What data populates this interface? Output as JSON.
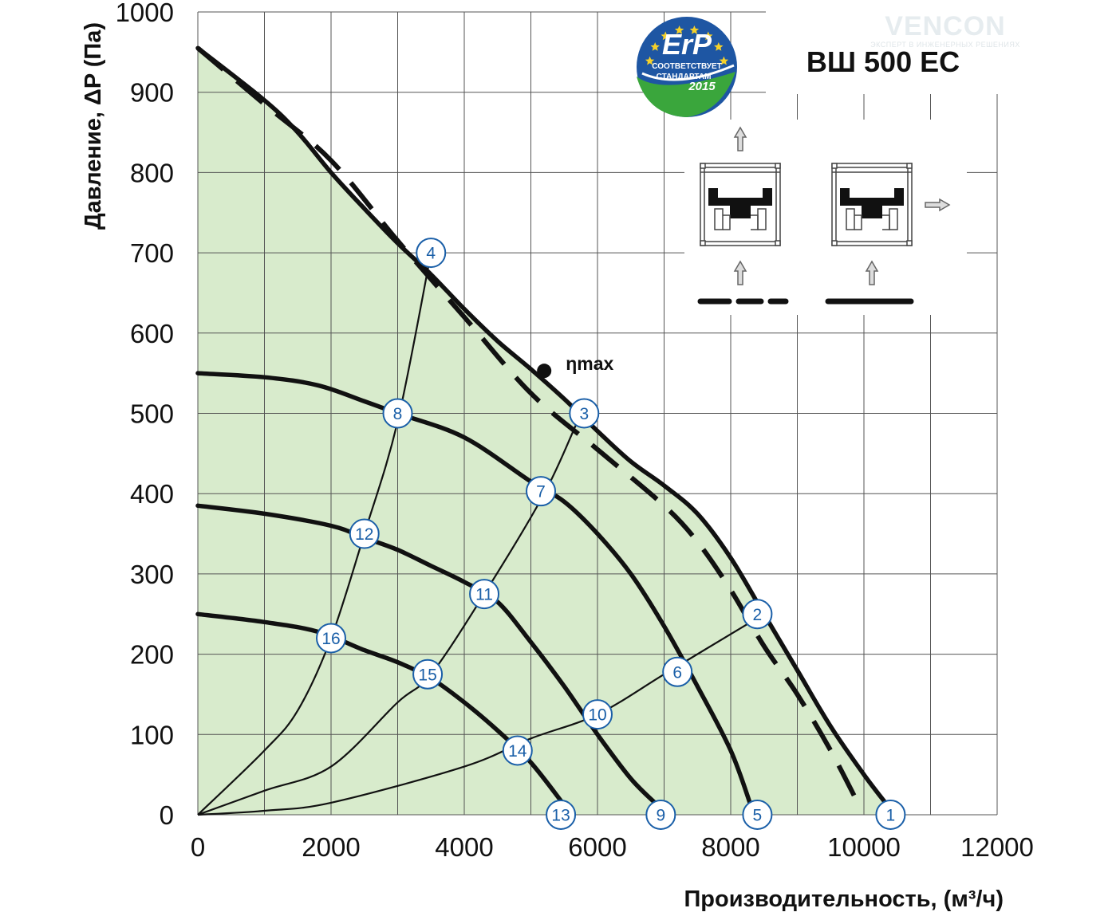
{
  "chart_data": {
    "type": "line",
    "model": "ВШ 500 ЕС",
    "brand": "VENCON",
    "brand_tagline": "ЭКСПЕРТ В ИНЖЕНЕРНЫХ РЕШЕНИЯХ",
    "xlabel": "Производительность, (м³/ч)",
    "ylabel": "Давление, ΔP (Па)",
    "xlim": [
      0,
      12000
    ],
    "ylim": [
      0,
      1000
    ],
    "x_ticks": [
      "0",
      "2000",
      "4000",
      "6000",
      "8000",
      "10000",
      "12000"
    ],
    "y_ticks": [
      "0",
      "100",
      "200",
      "300",
      "400",
      "500",
      "600",
      "700",
      "800",
      "900",
      "1000"
    ],
    "grid": true,
    "fill_color": "#d8ebcc",
    "curve_color": "#111111",
    "point_color": "#1a5fa8",
    "badge": {
      "big": "ErP",
      "line1": "СООТВЕТСТВУЕТ",
      "line2": "СТАНДАРТАМ",
      "year": "2015"
    },
    "eta_label": "ηmax",
    "eta_point": {
      "x": 5200,
      "y": 553
    },
    "fan_curves": [
      {
        "style": "solid",
        "points": [
          [
            0,
            955
          ],
          [
            1000,
            890
          ],
          [
            1500,
            850
          ],
          [
            2000,
            800
          ],
          [
            2500,
            755
          ],
          [
            3000,
            712
          ],
          [
            3500,
            673
          ],
          [
            4000,
            630
          ],
          [
            4500,
            590
          ],
          [
            5000,
            555
          ],
          [
            5500,
            518
          ],
          [
            6000,
            478
          ],
          [
            6500,
            440
          ],
          [
            7000,
            410
          ],
          [
            7500,
            375
          ],
          [
            8000,
            320
          ],
          [
            8500,
            250
          ],
          [
            9000,
            180
          ],
          [
            9500,
            110
          ],
          [
            10000,
            50
          ],
          [
            10350,
            12
          ]
        ]
      },
      {
        "style": "solid",
        "points": [
          [
            0,
            550
          ],
          [
            1000,
            545
          ],
          [
            1800,
            535
          ],
          [
            2500,
            515
          ],
          [
            3000,
            500
          ],
          [
            4000,
            470
          ],
          [
            5000,
            415
          ],
          [
            5500,
            390
          ],
          [
            6000,
            350
          ],
          [
            6500,
            300
          ],
          [
            7000,
            235
          ],
          [
            7500,
            160
          ],
          [
            8000,
            80
          ],
          [
            8300,
            12
          ]
        ]
      },
      {
        "style": "solid",
        "points": [
          [
            0,
            385
          ],
          [
            1000,
            375
          ],
          [
            2000,
            360
          ],
          [
            2500,
            345
          ],
          [
            3000,
            330
          ],
          [
            3500,
            310
          ],
          [
            4000,
            290
          ],
          [
            4500,
            265
          ],
          [
            5000,
            215
          ],
          [
            5500,
            160
          ],
          [
            6000,
            100
          ],
          [
            6500,
            45
          ],
          [
            6900,
            12
          ]
        ]
      },
      {
        "style": "solid",
        "points": [
          [
            0,
            250
          ],
          [
            1000,
            240
          ],
          [
            1800,
            228
          ],
          [
            2500,
            205
          ],
          [
            3000,
            190
          ],
          [
            3500,
            170
          ],
          [
            4000,
            140
          ],
          [
            4500,
            105
          ],
          [
            5000,
            65
          ],
          [
            5500,
            12
          ]
        ]
      }
    ],
    "max_dashed_curve": {
      "style": "dashed",
      "points": [
        [
          0,
          955
        ],
        [
          1000,
          885
        ],
        [
          2000,
          815
        ],
        [
          3000,
          715
        ],
        [
          4000,
          620
        ],
        [
          5000,
          525
        ],
        [
          6000,
          455
        ],
        [
          7000,
          385
        ],
        [
          7500,
          340
        ],
        [
          8000,
          280
        ],
        [
          8500,
          210
        ],
        [
          9000,
          150
        ],
        [
          9500,
          80
        ],
        [
          9950,
          8
        ]
      ]
    },
    "system_curves": [
      {
        "points": [
          [
            0,
            0
          ],
          [
            1000,
            80
          ],
          [
            1500,
            130
          ],
          [
            2000,
            220
          ],
          [
            2500,
            350
          ],
          [
            3000,
            490
          ],
          [
            3500,
            700
          ]
        ]
      },
      {
        "points": [
          [
            0,
            0
          ],
          [
            1000,
            30
          ],
          [
            2000,
            60
          ],
          [
            3000,
            140
          ],
          [
            3500,
            175
          ],
          [
            4300,
            275
          ],
          [
            5200,
            400
          ],
          [
            5700,
            490
          ],
          [
            5800,
            505
          ]
        ]
      },
      {
        "points": [
          [
            0,
            0
          ],
          [
            1000,
            5
          ],
          [
            2000,
            15
          ],
          [
            4000,
            60
          ],
          [
            5000,
            95
          ],
          [
            6000,
            125
          ],
          [
            7000,
            175
          ],
          [
            8000,
            225
          ],
          [
            8500,
            250
          ]
        ]
      }
    ],
    "points": [
      {
        "id": "1",
        "x": 10400,
        "y": 0
      },
      {
        "id": "2",
        "x": 8400,
        "y": 250
      },
      {
        "id": "3",
        "x": 5800,
        "y": 500
      },
      {
        "id": "4",
        "x": 3500,
        "y": 700
      },
      {
        "id": "5",
        "x": 8400,
        "y": 0
      },
      {
        "id": "6",
        "x": 7200,
        "y": 178
      },
      {
        "id": "7",
        "x": 5150,
        "y": 403
      },
      {
        "id": "8",
        "x": 3000,
        "y": 500
      },
      {
        "id": "9",
        "x": 6950,
        "y": 0
      },
      {
        "id": "10",
        "x": 6000,
        "y": 125
      },
      {
        "id": "11",
        "x": 4300,
        "y": 275
      },
      {
        "id": "12",
        "x": 2500,
        "y": 350
      },
      {
        "id": "13",
        "x": 5450,
        "y": 0
      },
      {
        "id": "14",
        "x": 4800,
        "y": 80
      },
      {
        "id": "15",
        "x": 3450,
        "y": 175
      },
      {
        "id": "16",
        "x": 2000,
        "y": 220
      }
    ]
  }
}
